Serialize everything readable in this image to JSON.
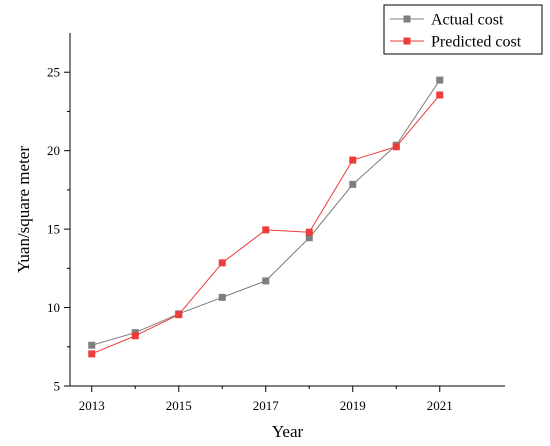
{
  "chart_data": {
    "type": "line",
    "title": "",
    "xlabel": "Year",
    "ylabel": "Yuan/square meter",
    "x": [
      2013,
      2014,
      2015,
      2016,
      2017,
      2018,
      2019,
      2020,
      2021
    ],
    "xlim": [
      2012.5,
      2022.5
    ],
    "xticks": [
      2013,
      2015,
      2017,
      2019,
      2021
    ],
    "ylim": [
      5,
      27.5
    ],
    "yticks": [
      5,
      10,
      15,
      20,
      25
    ],
    "grid": false,
    "legend_position": "top-right",
    "series": [
      {
        "name": "Actual cost",
        "color": "#7f7f7f",
        "marker": "square",
        "values": [
          7.6,
          8.4,
          9.6,
          10.65,
          11.7,
          14.45,
          17.85,
          20.35,
          24.5
        ]
      },
      {
        "name": "Predicted cost",
        "color": "#ee3b3b",
        "marker": "square",
        "values": [
          7.05,
          8.2,
          9.55,
          12.85,
          14.95,
          14.8,
          19.4,
          20.25,
          23.55
        ]
      }
    ]
  }
}
